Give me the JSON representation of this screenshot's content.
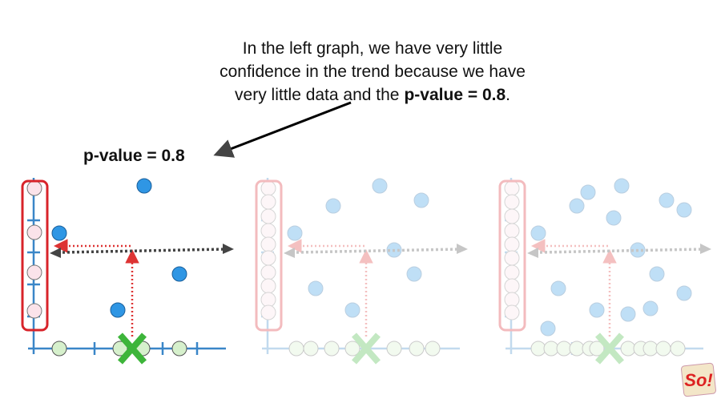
{
  "annotation": {
    "lines": [
      "In the left graph, we have very little",
      "confidence in the trend because we have",
      "very little data and the"
    ],
    "bold": "p-value = 0.8",
    "end": "."
  },
  "label": "p-value = 0.8",
  "logo": "So!"
}
